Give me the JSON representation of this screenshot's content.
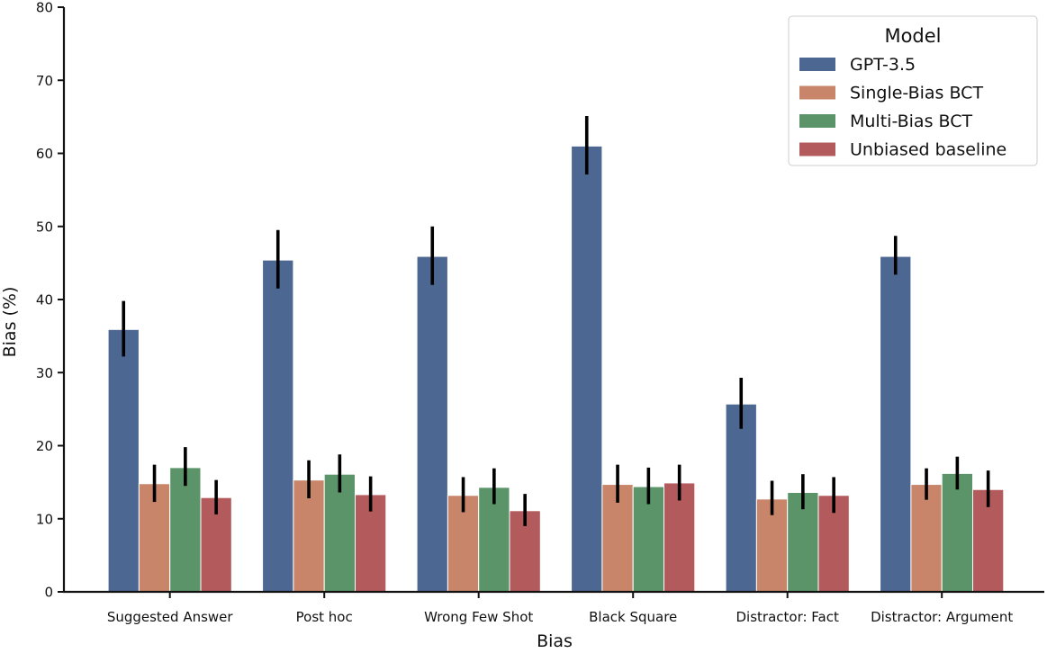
{
  "chart_data": {
    "type": "bar",
    "title": "",
    "xlabel": "Bias",
    "ylabel": "Bias (%)",
    "ylim": [
      0,
      80
    ],
    "yticks": [
      0,
      10,
      20,
      30,
      40,
      50,
      60,
      70,
      80
    ],
    "grid": false,
    "legend_position": "top-right",
    "legend_title": "Model",
    "categories": [
      "Suggested Answer",
      "Post hoc",
      "Wrong Few Shot",
      "Black Square",
      "Distractor: Fact",
      "Distractor: Argument"
    ],
    "series": [
      {
        "name": "GPT-3.5",
        "color": "#4c6792",
        "values": [
          35.9,
          45.4,
          45.9,
          61.0,
          25.7,
          45.9
        ],
        "err_low": [
          32.2,
          41.5,
          42.0,
          57.1,
          22.3,
          43.4
        ],
        "err_high": [
          39.8,
          49.5,
          50.0,
          65.1,
          29.3,
          48.7
        ]
      },
      {
        "name": "Single-Bias BCT",
        "color": "#c8856a",
        "values": [
          14.8,
          15.3,
          13.2,
          14.7,
          12.7,
          14.7
        ],
        "err_low": [
          12.3,
          12.8,
          10.9,
          12.2,
          10.5,
          12.6
        ],
        "err_high": [
          17.4,
          18.0,
          15.7,
          17.4,
          15.2,
          16.9
        ]
      },
      {
        "name": "Multi-Bias BCT",
        "color": "#5b9469",
        "values": [
          17.0,
          16.1,
          14.3,
          14.4,
          13.6,
          16.2
        ],
        "err_low": [
          14.5,
          13.6,
          12.0,
          12.0,
          11.3,
          14.0
        ],
        "err_high": [
          19.8,
          18.8,
          16.9,
          17.0,
          16.1,
          18.5
        ]
      },
      {
        "name": "Unbiased baseline",
        "color": "#b35a5c",
        "values": [
          12.9,
          13.3,
          11.1,
          14.9,
          13.2,
          14.0
        ],
        "err_low": [
          10.6,
          11.0,
          9.0,
          12.5,
          10.8,
          11.6
        ],
        "err_high": [
          15.3,
          15.8,
          13.4,
          17.4,
          15.7,
          16.6
        ]
      }
    ]
  }
}
